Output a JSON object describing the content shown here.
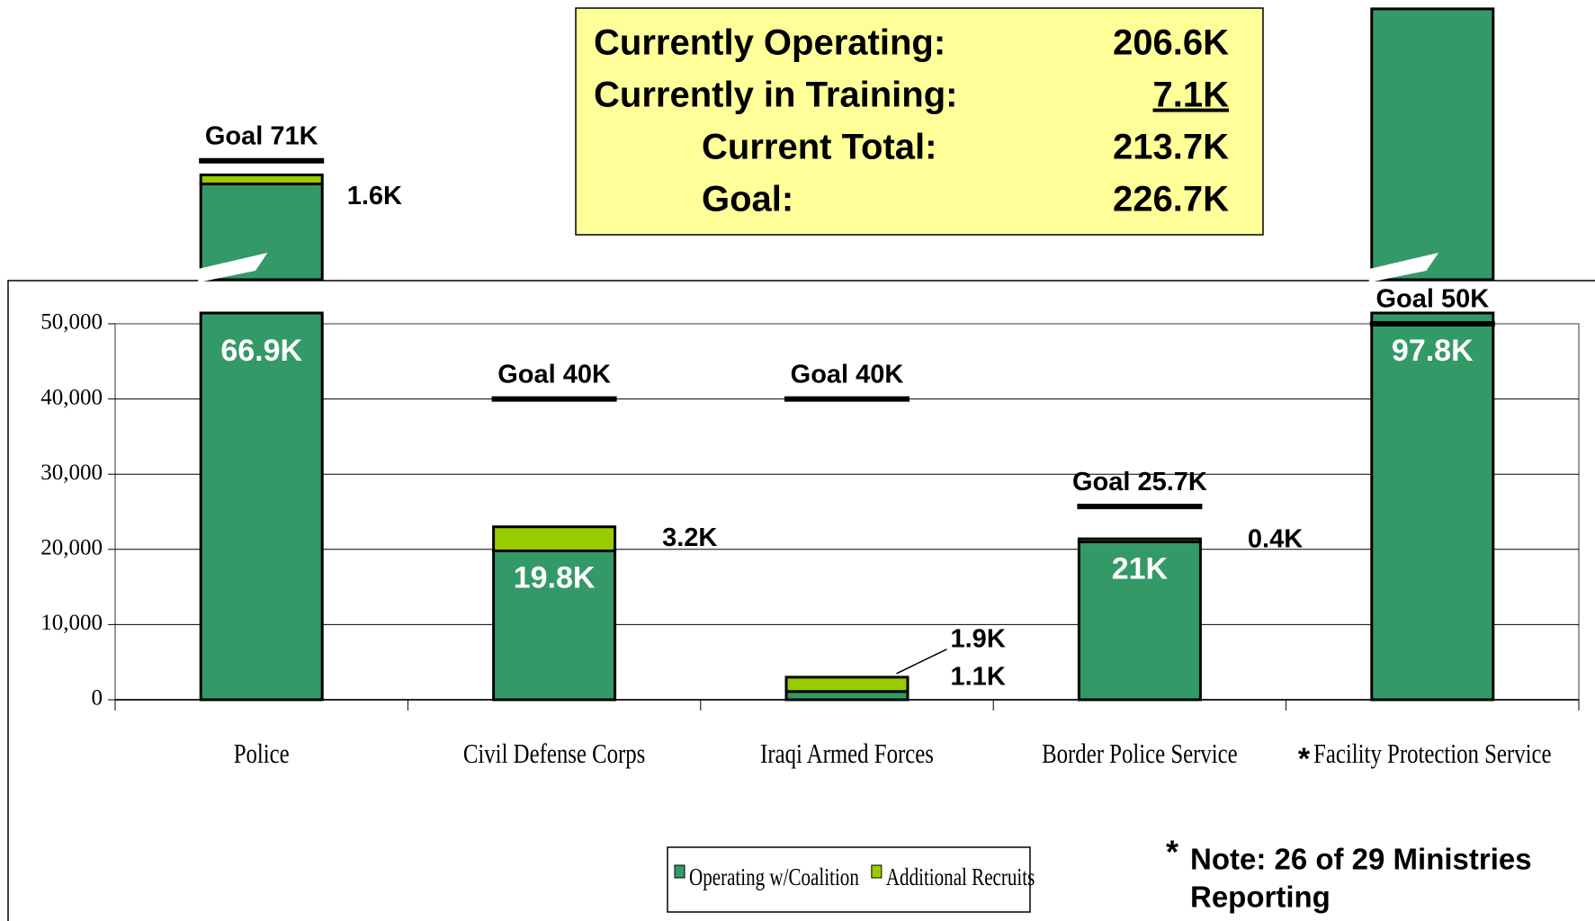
{
  "chart_data": {
    "type": "bar",
    "categories": [
      "Police",
      "Civil Defense Corps",
      "Iraqi Armed Forces",
      "Border Police Service",
      "Facility Protection Service"
    ],
    "footnote_marker": "*",
    "series": [
      {
        "name": "Operating w/Coalition",
        "color": "#339966",
        "values": [
          66900,
          19800,
          1100,
          21000,
          97800
        ],
        "value_labels": [
          "66.9K",
          "19.8K",
          "1.1K",
          "21K",
          "97.8K"
        ]
      },
      {
        "name": "Additional Recruits",
        "color": "#99cc00",
        "values": [
          1600,
          3200,
          1900,
          400,
          null
        ],
        "value_labels": [
          "1.6K",
          "3.2K",
          "1.9K",
          "0.4K",
          null
        ]
      }
    ],
    "goals": {
      "values": [
        71000,
        40000,
        40000,
        25700,
        50000
      ],
      "labels": [
        "Goal 71K",
        "Goal 40K",
        "Goal 40K",
        "Goal 25.7K",
        "Goal 50K"
      ]
    },
    "ylim": [
      0,
      50000
    ],
    "yticks": [
      0,
      {
        "value": 10000,
        "label": "10,000"
      },
      {
        "value": 20000,
        "label": "20,000"
      },
      {
        "value": 30000,
        "label": "30,000"
      },
      {
        "value": 40000,
        "label": "40,000"
      },
      {
        "value": 50000,
        "label": "50,000"
      }
    ],
    "grid": true,
    "summary": [
      {
        "label": "Currently Operating:",
        "value": "206.6K"
      },
      {
        "label": "Currently in Training:",
        "value": "7.1K"
      },
      {
        "label": "Current Total:",
        "value": "213.7K"
      },
      {
        "label": "Goal:",
        "value": "226.7K"
      }
    ],
    "note": [
      "Note: 26 of 29 Ministries",
      "Reporting"
    ]
  }
}
